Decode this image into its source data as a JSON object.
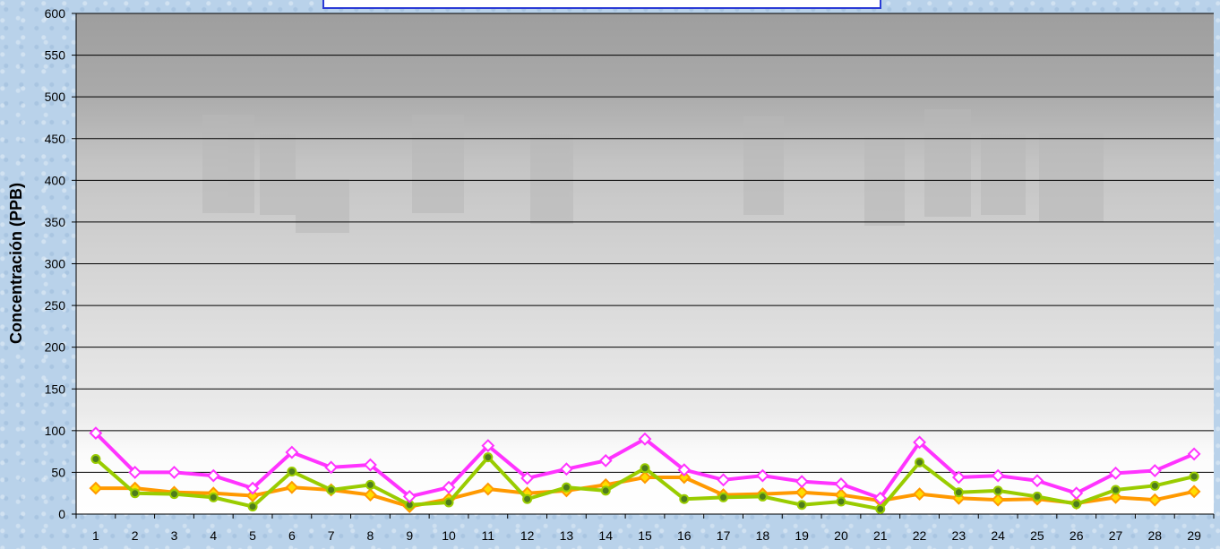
{
  "chart_data": {
    "type": "line",
    "title": "",
    "xlabel": "",
    "ylabel": "Concentración  (PPB)",
    "x": [
      1,
      2,
      3,
      4,
      5,
      6,
      7,
      8,
      9,
      10,
      11,
      12,
      13,
      14,
      15,
      16,
      17,
      18,
      19,
      20,
      21,
      22,
      23,
      24,
      25,
      26,
      27,
      28,
      29
    ],
    "ylim": [
      0,
      600
    ],
    "yticks": [
      0,
      50,
      100,
      150,
      200,
      250,
      300,
      350,
      400,
      450,
      500,
      550,
      600
    ],
    "grid": true,
    "legend": "none",
    "series": [
      {
        "color": "#ff33ff",
        "marker": "diamond",
        "values": [
          97,
          50,
          50,
          46,
          31,
          74,
          56,
          59,
          21,
          32,
          82,
          43,
          54,
          64,
          90,
          53,
          41,
          46,
          39,
          36,
          19,
          86,
          44,
          46,
          40,
          25,
          49,
          52,
          72
        ]
      },
      {
        "color": "#99cc00",
        "marker": "circle",
        "values": [
          66,
          25,
          24,
          20,
          9,
          51,
          29,
          35,
          11,
          14,
          68,
          18,
          32,
          28,
          55,
          18,
          20,
          21,
          11,
          15,
          6,
          62,
          26,
          28,
          21,
          12,
          29,
          34,
          45
        ]
      },
      {
        "color": "#ff9900",
        "marker": "diamond",
        "values": [
          31,
          31,
          26,
          25,
          22,
          32,
          29,
          23,
          9,
          18,
          30,
          25,
          28,
          35,
          44,
          44,
          23,
          24,
          26,
          23,
          16,
          24,
          19,
          17,
          18,
          13,
          20,
          17,
          27
        ]
      }
    ]
  }
}
